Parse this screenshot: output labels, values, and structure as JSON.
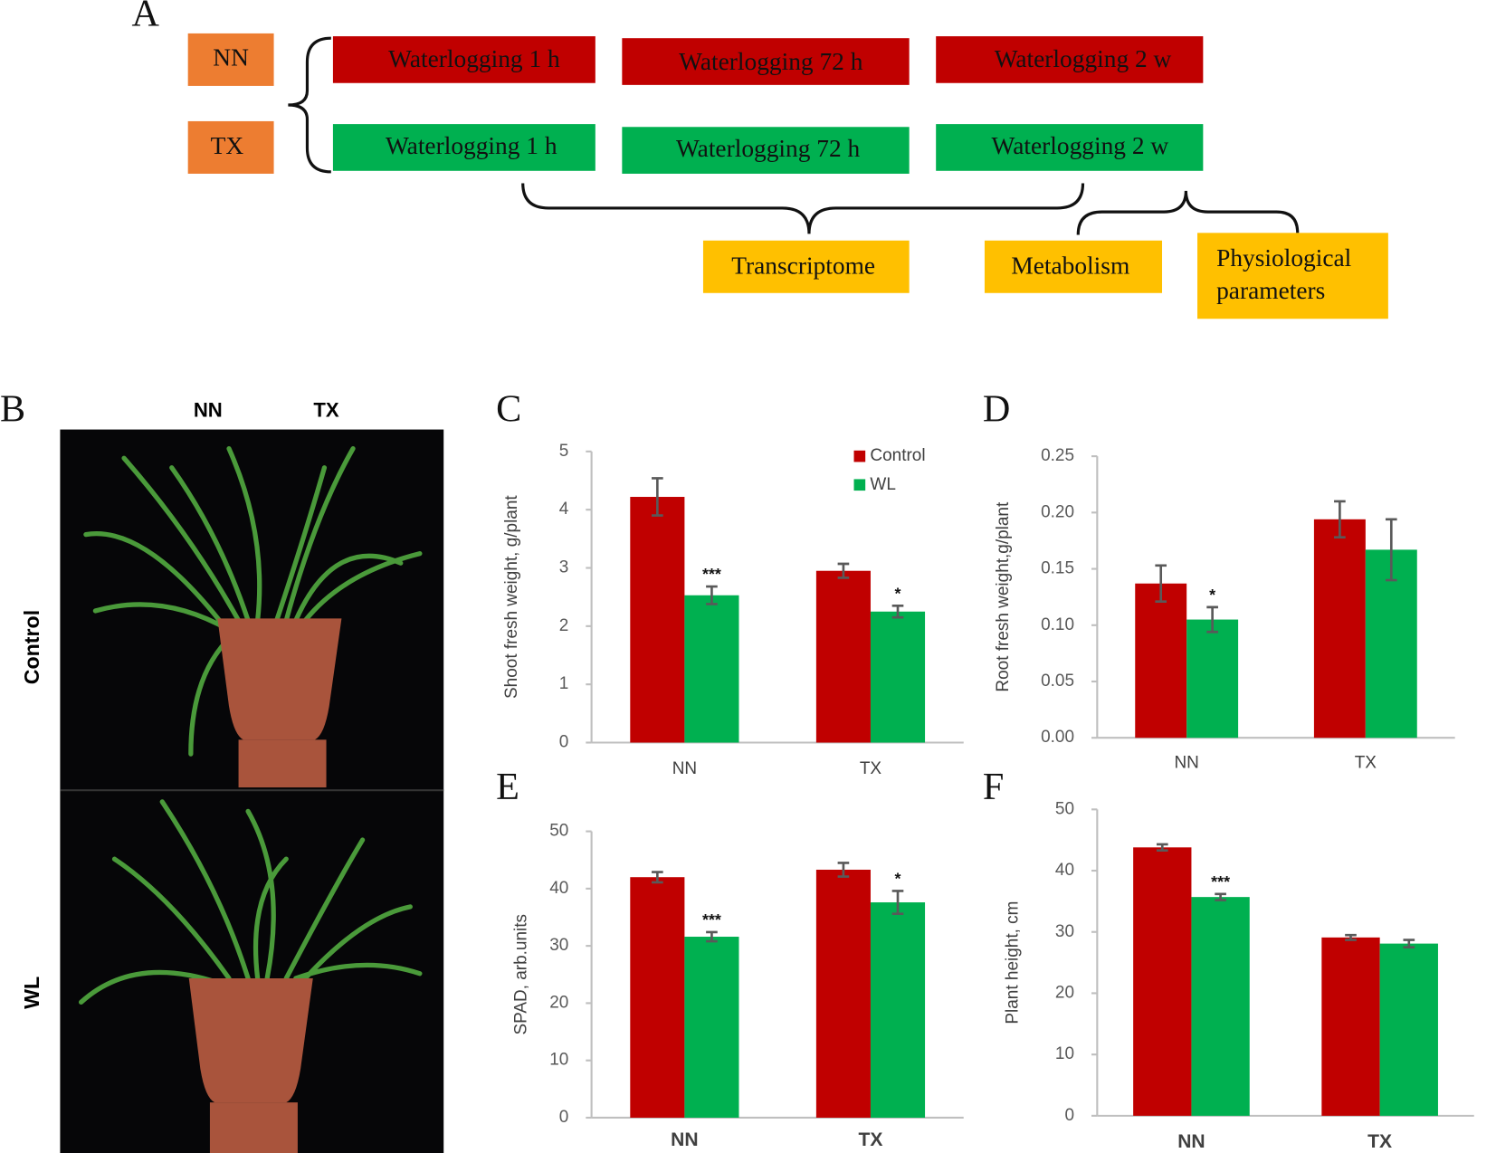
{
  "panel_a": {
    "label": "A",
    "genotypes": [
      "NN",
      "TX"
    ],
    "treatments": [
      [
        "Waterlogging 1 h",
        "Waterlogging 72 h",
        "Waterlogging 2 w"
      ],
      [
        "Waterlogging 1 h",
        "Waterlogging 72 h",
        "Waterlogging 2 w"
      ]
    ],
    "analyses": [
      "Transcriptome",
      "Metabolism",
      "Physiological parameters"
    ]
  },
  "panel_b": {
    "label": "B",
    "columns": [
      "NN",
      "TX"
    ],
    "rows": [
      "Control",
      "WL"
    ]
  },
  "chart_data": [
    {
      "type": "bar",
      "panel": "C",
      "ylabel": "Shoot fresh weight, g/plant",
      "categories": [
        "NN",
        "TX"
      ],
      "ylim": [
        0,
        5
      ],
      "yticks": [
        0,
        1,
        2,
        3,
        4,
        5
      ],
      "legend": "top-right",
      "series": [
        {
          "name": "Control",
          "color": "#c00000",
          "values": [
            4.22,
            2.95
          ],
          "errors": [
            0.32,
            0.12
          ]
        },
        {
          "name": "WL",
          "color": "#00b050",
          "values": [
            2.53,
            2.25
          ],
          "errors": [
            0.15,
            0.1
          ],
          "significance": [
            "***",
            "*"
          ]
        }
      ]
    },
    {
      "type": "bar",
      "panel": "D",
      "ylabel": "Root fresh weight,g/plant",
      "categories": [
        "NN",
        "TX"
      ],
      "ylim": [
        0,
        0.25
      ],
      "yticks": [
        {
          "value": 0,
          "label": "0.00"
        },
        0.05,
        {
          "value": 0.1,
          "label": "0.10"
        },
        0.15,
        {
          "value": 0.2,
          "label": "0.20"
        },
        0.25
      ],
      "series": [
        {
          "color": "#c00000",
          "values": [
            0.137,
            0.194
          ],
          "errors": [
            0.016,
            0.016
          ]
        },
        {
          "color": "#00b050",
          "values": [
            0.105,
            0.167
          ],
          "errors": [
            0.011,
            0.027
          ],
          "significance": [
            "*",
            null
          ]
        }
      ]
    },
    {
      "type": "bar",
      "panel": "E",
      "ylabel": "SPAD, arb.units",
      "categories": [
        "NN",
        "TX"
      ],
      "ylim": [
        0,
        50
      ],
      "yticks": [
        0,
        10,
        20,
        30,
        40,
        50
      ],
      "series": [
        {
          "color": "#c00000",
          "values": [
            42,
            43.3
          ],
          "errors": [
            0.9,
            1.2
          ]
        },
        {
          "color": "#00b050",
          "values": [
            31.6,
            37.6
          ],
          "errors": [
            0.8,
            2
          ],
          "significance": [
            "***",
            "*"
          ]
        }
      ]
    },
    {
      "type": "bar",
      "panel": "F",
      "ylabel": "Plant height, cm",
      "categories": [
        "NN",
        "TX"
      ],
      "ylim": [
        0,
        50
      ],
      "yticks": [
        0,
        10,
        20,
        30,
        40,
        50
      ],
      "series": [
        {
          "color": "#c00000",
          "values": [
            43.8,
            29.1
          ],
          "errors": [
            0.5,
            0.4
          ]
        },
        {
          "color": "#00b050",
          "values": [
            35.7,
            28.1
          ],
          "errors": [
            0.5,
            0.6
          ],
          "significance": [
            "***",
            null
          ]
        }
      ]
    }
  ]
}
